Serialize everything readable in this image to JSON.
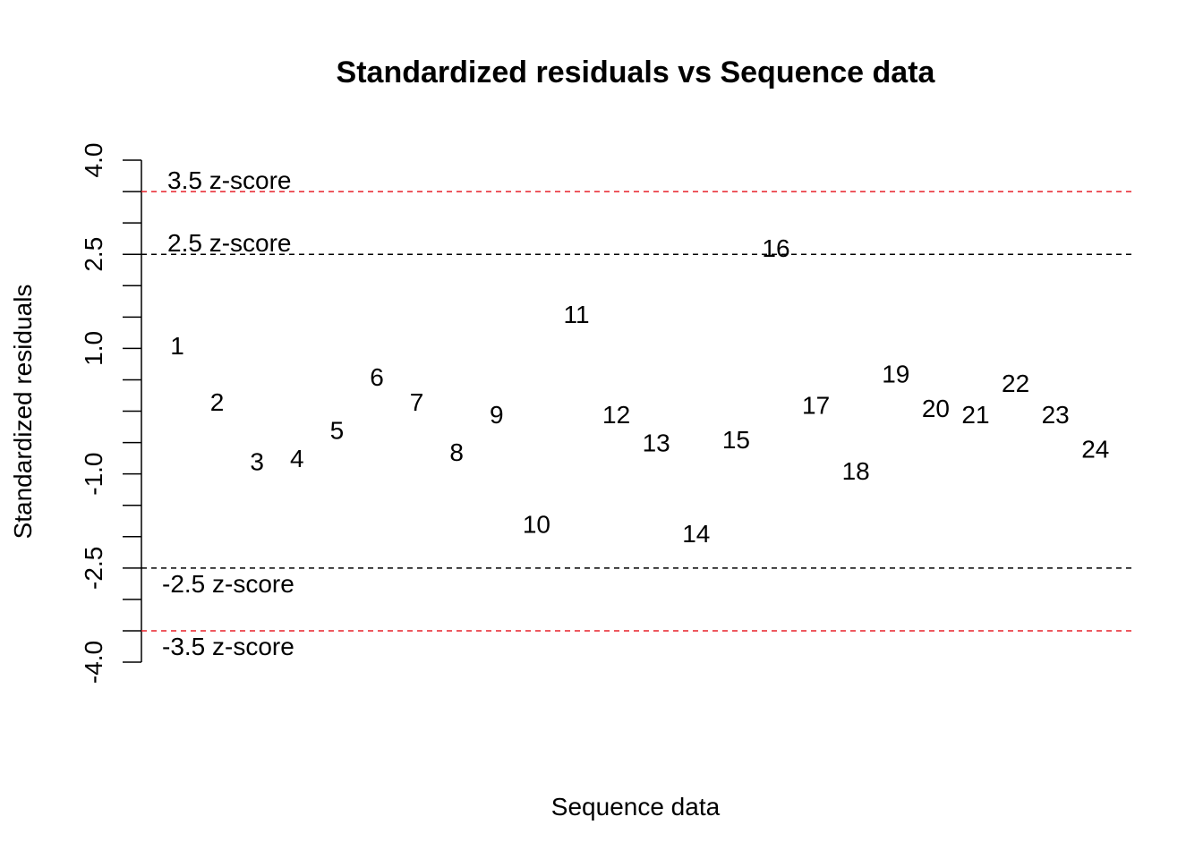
{
  "chart_data": {
    "type": "scatter",
    "title": "Standardized residuals vs Sequence data",
    "xlabel": "Sequence data",
    "ylabel": "Standardized residuals",
    "xlim": [
      0.5,
      24.5
    ],
    "ylim": [
      -4.0,
      4.0
    ],
    "y_ticks": [
      4.0,
      2.5,
      1.0,
      -1.0,
      -2.5,
      -4.0
    ],
    "y_tick_labels": [
      "4.0",
      "2.5",
      "1.0",
      "-1.0",
      "-2.5",
      "-4.0"
    ],
    "y_minor_ticks": [
      3.5,
      3.0,
      2.0,
      1.5,
      0.5,
      0.0,
      -0.5,
      -1.5,
      -2.0,
      -3.0,
      -3.5
    ],
    "grid": false,
    "markers": "labels",
    "points": [
      {
        "x": 1,
        "y": 1.05,
        "label": "1"
      },
      {
        "x": 2,
        "y": 0.15,
        "label": "2"
      },
      {
        "x": 3,
        "y": -0.8,
        "label": "3"
      },
      {
        "x": 4,
        "y": -0.75,
        "label": "4"
      },
      {
        "x": 5,
        "y": -0.3,
        "label": "5"
      },
      {
        "x": 6,
        "y": 0.55,
        "label": "6"
      },
      {
        "x": 7,
        "y": 0.15,
        "label": "7"
      },
      {
        "x": 8,
        "y": -0.65,
        "label": "8"
      },
      {
        "x": 9,
        "y": -0.05,
        "label": "9"
      },
      {
        "x": 10,
        "y": -1.8,
        "label": "10"
      },
      {
        "x": 11,
        "y": 1.55,
        "label": "11"
      },
      {
        "x": 12,
        "y": -0.05,
        "label": "12"
      },
      {
        "x": 13,
        "y": -0.5,
        "label": "13"
      },
      {
        "x": 14,
        "y": -1.95,
        "label": "14"
      },
      {
        "x": 15,
        "y": -0.45,
        "label": "15"
      },
      {
        "x": 16,
        "y": 2.6,
        "label": "16"
      },
      {
        "x": 17,
        "y": 0.1,
        "label": "17"
      },
      {
        "x": 18,
        "y": -0.95,
        "label": "18"
      },
      {
        "x": 19,
        "y": 0.6,
        "label": "19"
      },
      {
        "x": 20,
        "y": 0.05,
        "label": "20"
      },
      {
        "x": 21,
        "y": -0.05,
        "label": "21"
      },
      {
        "x": 22,
        "y": 0.45,
        "label": "22"
      },
      {
        "x": 23,
        "y": -0.05,
        "label": "23"
      },
      {
        "x": 24,
        "y": -0.6,
        "label": "24"
      }
    ],
    "reference_lines": [
      {
        "y": 3.5,
        "label": "3.5 z-score",
        "color": "#e8222a",
        "style": "dashed"
      },
      {
        "y": 2.5,
        "label": "2.5 z-score",
        "color": "#000000",
        "style": "dashed"
      },
      {
        "y": -2.5,
        "label": "-2.5 z-score",
        "color": "#000000",
        "style": "dashed"
      },
      {
        "y": -3.5,
        "label": "-3.5 z-score",
        "color": "#e8222a",
        "style": "dashed"
      }
    ]
  }
}
